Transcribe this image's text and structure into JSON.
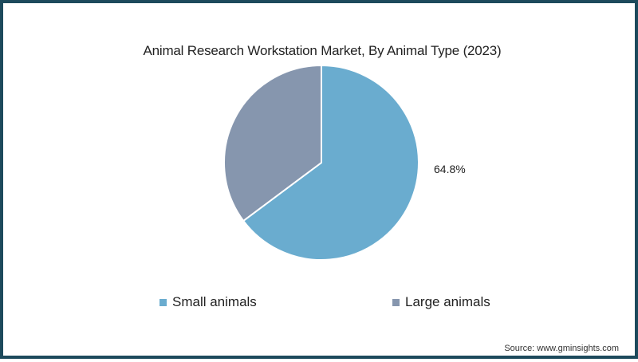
{
  "chart_data": {
    "type": "pie",
    "title": "Animal Research Workstation Market, By Animal Type (2023)",
    "categories": [
      "Small animals",
      "Large animals"
    ],
    "values": [
      64.8,
      35.2
    ],
    "colors": [
      "#6aaccf",
      "#8696ae"
    ],
    "data_labels": [
      {
        "category": "Small animals",
        "text": "64.8%"
      }
    ],
    "start_angle": "12 o'clock, clockwise",
    "legend_position": "bottom"
  },
  "title": "Animal Research Workstation Market, By Animal Type (2023)",
  "label_small": "64.8%",
  "legend": [
    {
      "label": "Small animals",
      "color": "#6aaccf"
    },
    {
      "label": "Large animals",
      "color": "#8696ae"
    }
  ],
  "source": "Source: www.gminsights.com",
  "frame_color": "#1d4a5c"
}
